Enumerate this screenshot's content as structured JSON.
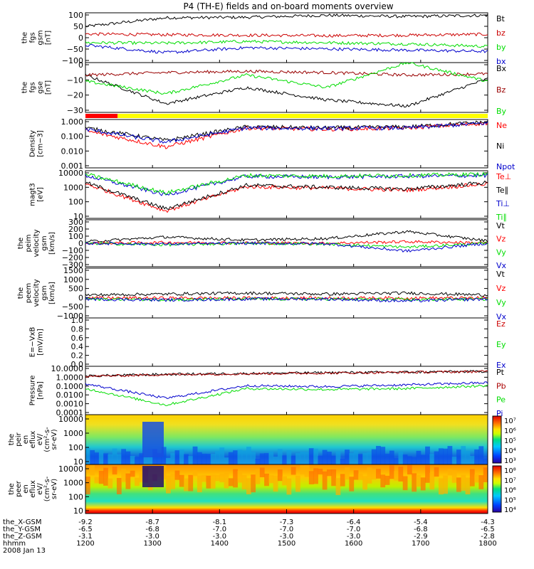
{
  "chart_data": {
    "type": "line",
    "title": "P4 (TH-E) fields and on-board moments overview",
    "date_label": "2008 Jan 13",
    "x_ticks": [
      "1200",
      "1300",
      "1400",
      "1500",
      "1600",
      "1700",
      "1800"
    ],
    "x_range": [
      "12:00",
      "18:00"
    ],
    "ephemeris": [
      {
        "label": "the_X-GSM",
        "values": [
          "-9.2",
          "-8.7",
          "-8.1",
          "-7.3",
          "-6.4",
          "-5.4",
          "-4.3"
        ]
      },
      {
        "label": "the_Y-GSM",
        "values": [
          "-6.5",
          "-6.8",
          "-7.0",
          "-7.0",
          "-7.0",
          "-6.8",
          "-6.5"
        ]
      },
      {
        "label": "the_Z-GSM",
        "values": [
          "-3.1",
          "-3.0",
          "-3.0",
          "-3.0",
          "-3.0",
          "-2.9",
          "-2.8"
        ]
      },
      {
        "label": "hhmm",
        "values": [
          "1200",
          "1300",
          "1400",
          "1500",
          "1600",
          "1700",
          "1800"
        ]
      }
    ],
    "mode_bar": {
      "colors": [
        "#ff0000",
        "#ffff00"
      ],
      "red_until_fraction": 0.08
    },
    "panels": [
      {
        "id": "fgs-gsm",
        "ylabel": [
          "the",
          "fgs",
          "gsm",
          "[nT]"
        ],
        "scale": "linear",
        "ylim": [
          -100,
          100
        ],
        "ticks": [
          "100",
          "50",
          "0",
          "−50",
          "−100"
        ],
        "series": [
          {
            "name": "Bt",
            "color": "#000000",
            "levels": [
              45,
              80,
              82,
              90,
              85,
              90
            ]
          },
          {
            "name": "bz",
            "color": "#cc0000",
            "levels": [
              15,
              12,
              10,
              8,
              10,
              14
            ]
          },
          {
            "name": "by",
            "color": "#00dd00",
            "levels": [
              -20,
              -22,
              -15,
              -20,
              -25,
              -35
            ]
          },
          {
            "name": "bx",
            "color": "#0000cc",
            "levels": [
              -30,
              -60,
              -40,
              -45,
              -50,
              -55
            ]
          }
        ]
      },
      {
        "id": "fgs-gse",
        "ylabel": [
          "the",
          "fgs",
          "gse",
          "[nT]"
        ],
        "scale": "linear",
        "ylim": [
          -35,
          5
        ],
        "ticks": [
          "0",
          "−10",
          "−20",
          "−30"
        ],
        "series": [
          {
            "name": "Bx",
            "color": "#000000",
            "levels": [
              -5,
              -28,
              -15,
              -25,
              -30,
              -8
            ]
          },
          {
            "name": "Bz",
            "color": "#990000",
            "levels": [
              -5,
              -3,
              -2,
              -3,
              -5,
              -4
            ]
          },
          {
            "name": "By",
            "color": "#00dd00",
            "levels": [
              -10,
              -20,
              -5,
              -15,
              5,
              -10
            ]
          }
        ]
      },
      {
        "id": "density",
        "ylabel": [
          "Density",
          "[cm−3]"
        ],
        "scale": "log",
        "ylim": [
          0.001,
          1.0
        ],
        "ticks": [
          "1.000",
          "0.100",
          "0.010",
          "0.001"
        ],
        "series": [
          {
            "name": "Ne",
            "color": "#ff0000",
            "levels": [
              0.2,
              0.02,
              0.3,
              0.25,
              0.3,
              0.6
            ]
          },
          {
            "name": "Ni",
            "color": "#000000",
            "levels": [
              0.3,
              0.05,
              0.35,
              0.3,
              0.35,
              0.7
            ]
          },
          {
            "name": "Npot",
            "color": "#0000cc",
            "levels": [
              0.25,
              0.04,
              0.3,
              0.28,
              0.3,
              0.6
            ]
          }
        ]
      },
      {
        "id": "temperature",
        "ylabel": [
          "magt3",
          "[eV]"
        ],
        "scale": "log",
        "ylim": [
          10,
          10000
        ],
        "ticks": [
          "10000",
          "1000",
          "100",
          "10"
        ],
        "series": [
          {
            "name": "Te⊥",
            "color": "#ff0000",
            "levels": [
              1500,
              30,
              1000,
              800,
              600,
              1500
            ]
          },
          {
            "name": "Te∥",
            "color": "#000000",
            "levels": [
              1800,
              40,
              1200,
              900,
              700,
              1800
            ]
          },
          {
            "name": "Ti⊥",
            "color": "#0000cc",
            "levels": [
              5000,
              300,
              4500,
              4000,
              4500,
              5000
            ]
          },
          {
            "name": "Ti∥",
            "color": "#00dd00",
            "levels": [
              6000,
              400,
              5000,
              4500,
              5000,
              6000
            ]
          }
        ]
      },
      {
        "id": "peim-velocity",
        "ylabel": [
          "the",
          "peim",
          "velocity",
          "gsm",
          "[km/s]"
        ],
        "scale": "linear",
        "ylim": [
          -300,
          300
        ],
        "ticks": [
          "300",
          "200",
          "100",
          "0",
          "−100",
          "−200",
          "−300"
        ],
        "series": [
          {
            "name": "Vt",
            "color": "#000000",
            "levels": [
              20,
              80,
              40,
              60,
              150,
              30
            ]
          },
          {
            "name": "Vz",
            "color": "#ff0000",
            "levels": [
              0,
              10,
              5,
              0,
              20,
              5
            ]
          },
          {
            "name": "Vy",
            "color": "#00dd00",
            "levels": [
              0,
              -20,
              0,
              -10,
              -50,
              0
            ]
          },
          {
            "name": "Vx",
            "color": "#0000cc",
            "levels": [
              0,
              -10,
              0,
              -5,
              -100,
              0
            ]
          }
        ]
      },
      {
        "id": "peem-velocity",
        "ylabel": [
          "the",
          "peem",
          "velocity",
          "gsm",
          "[km/s]"
        ],
        "scale": "linear",
        "ylim": [
          -1000,
          1500
        ],
        "ticks": [
          "1500",
          "1000",
          "500",
          "0",
          "−500",
          "−1000"
        ],
        "series": [
          {
            "name": "Vt",
            "color": "#000000",
            "levels": [
              150,
              200,
              250,
              200,
              250,
              150
            ]
          },
          {
            "name": "Vz",
            "color": "#ff0000",
            "levels": [
              0,
              0,
              0,
              0,
              0,
              0
            ]
          },
          {
            "name": "Vy",
            "color": "#00dd00",
            "levels": [
              -50,
              -80,
              -50,
              -50,
              -80,
              -50
            ]
          },
          {
            "name": "Vx",
            "color": "#0000cc",
            "levels": [
              -50,
              -100,
              -50,
              -50,
              -150,
              -50
            ]
          }
        ]
      },
      {
        "id": "efield",
        "ylabel": [
          "E=−VxB",
          "[mV/m]"
        ],
        "scale": "linear",
        "ylim": [
          0,
          1
        ],
        "ticks": [
          "1.0",
          "0.8",
          "0.6",
          "0.4",
          "0.2",
          "0.0"
        ],
        "series": [
          {
            "name": "Ez",
            "color": "#cc0000",
            "levels": []
          },
          {
            "name": "Ey",
            "color": "#00dd00",
            "levels": []
          },
          {
            "name": "Ex",
            "color": "#0000cc",
            "levels": []
          }
        ]
      },
      {
        "id": "pressure",
        "ylabel": [
          "Pressure",
          "[nPa]"
        ],
        "scale": "log",
        "ylim": [
          0.0001,
          10
        ],
        "ticks": [
          "10.0000",
          "1.0000",
          "0.1000",
          "0.0100",
          "0.0010",
          "0.0001"
        ],
        "series": [
          {
            "name": "Pt",
            "color": "#000000",
            "levels": [
              1.0,
              1.5,
              1.8,
              2.2,
              2.5,
              3.0
            ]
          },
          {
            "name": "Pb",
            "color": "#aa0000",
            "levels": [
              0.9,
              1.4,
              1.7,
              2.0,
              2.4,
              2.9
            ]
          },
          {
            "name": "Pe",
            "color": "#00dd00",
            "levels": [
              0.05,
              0.001,
              0.05,
              0.04,
              0.05,
              0.1
            ]
          },
          {
            "name": "Pi",
            "color": "#0000cc",
            "levels": [
              0.15,
              0.005,
              0.1,
              0.08,
              0.12,
              0.2
            ]
          }
        ]
      }
    ],
    "spectrograms": [
      {
        "id": "peir",
        "ylabel": [
          "the",
          "peir",
          "en",
          "eflux",
          "eV/",
          "(cm²-s-",
          "sr-eV)"
        ],
        "ticks": [
          "10000",
          "1000",
          "100",
          "10"
        ],
        "colorbar_ticks": [
          "10⁷",
          "10⁶",
          "10⁵",
          "10⁴",
          "10³"
        ]
      },
      {
        "id": "peer",
        "ylabel": [
          "the",
          "peer",
          "en",
          "eflux",
          "eV/",
          "(cm²-s-",
          "sr-eV)"
        ],
        "ticks": [
          "10000",
          "1000",
          "100",
          "10"
        ],
        "colorbar_ticks": [
          "10⁸",
          "10⁷",
          "10⁶",
          "10⁵",
          "10⁴"
        ]
      }
    ]
  }
}
